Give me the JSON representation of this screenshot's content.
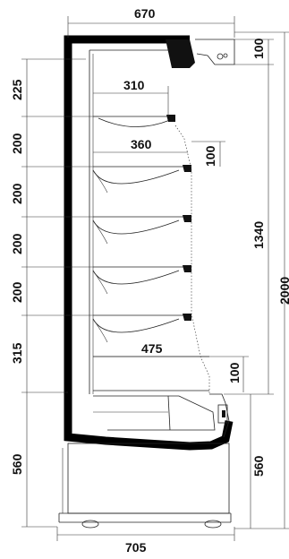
{
  "dimensions": {
    "top_width": "670",
    "bottom_width": "705",
    "top_ext": "100",
    "section_top": "225",
    "shelf_gap_1": "200",
    "shelf_gap_2": "200",
    "shelf_gap_3": "200",
    "shelf_gap_4": "200",
    "section_bottom": "315",
    "base_left": "560",
    "shelf_top_depth": "310",
    "shelf_mid_depth": "360",
    "mid_ext": "100",
    "shelf_bottom_depth": "475",
    "bottom_ext": "100",
    "inner_height": "1340",
    "total_height": "2000",
    "base_right": "560"
  }
}
